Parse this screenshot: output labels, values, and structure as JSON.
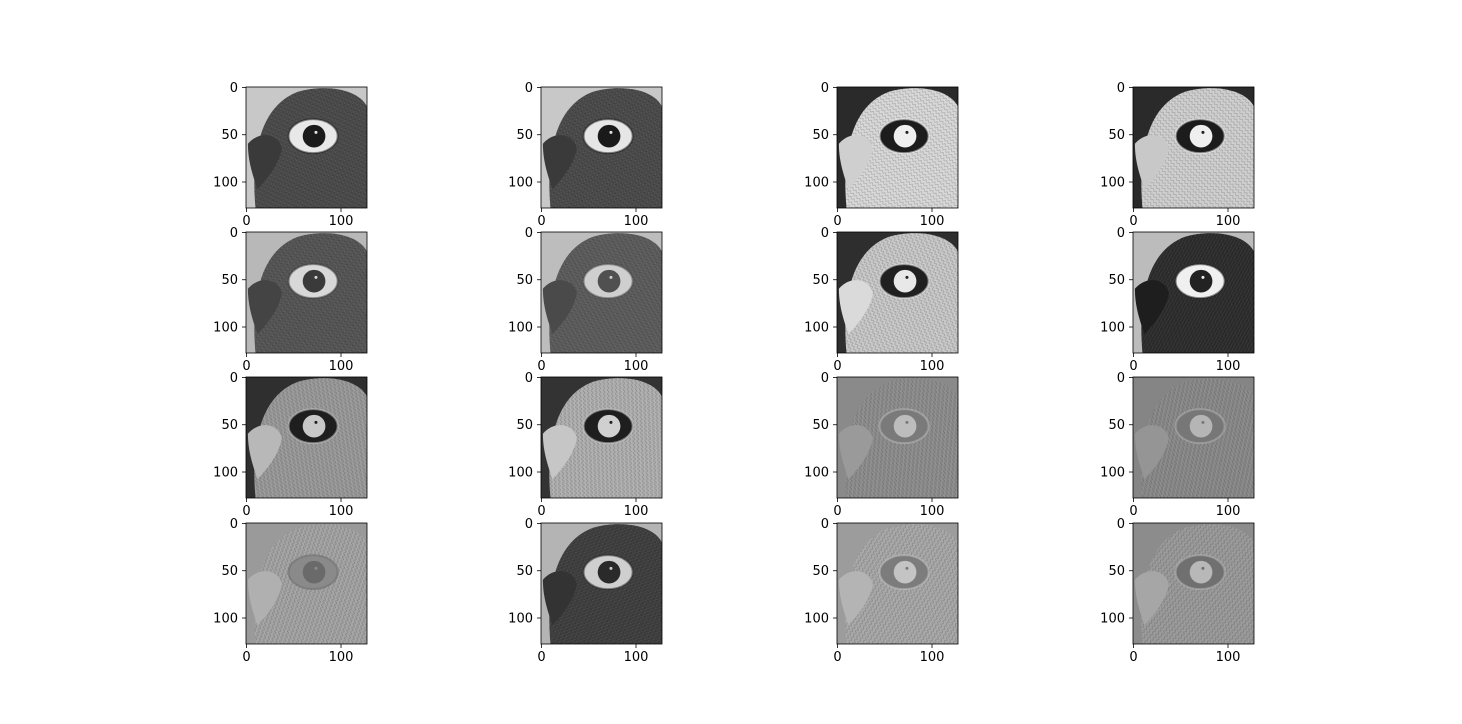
{
  "figure": {
    "rows": 4,
    "cols": 4,
    "image_size": 128,
    "x_ticks": [
      "0",
      "100"
    ],
    "y_ticks": [
      "0",
      "50",
      "100"
    ],
    "panels": [
      {
        "row": 0,
        "col": 0,
        "description": "grayscale parrot eye, original tones",
        "bg": "#c8c8c8",
        "feather": "#4a4a4a",
        "sclera": "#e8e8e8",
        "pupil": "#1a1a1a",
        "beak": "#3a3a3a"
      },
      {
        "row": 0,
        "col": 1,
        "description": "grayscale parrot eye, original tones",
        "bg": "#c8c8c8",
        "feather": "#4a4a4a",
        "sclera": "#e6e6e6",
        "pupil": "#1a1a1a",
        "beak": "#3a3a3a"
      },
      {
        "row": 0,
        "col": 2,
        "description": "grayscale parrot eye, inverted tones",
        "bg": "#2a2a2a",
        "feather": "#d8d8d8",
        "sclera": "#1c1c1c",
        "pupil": "#efefef",
        "beak": "#cfcfcf"
      },
      {
        "row": 0,
        "col": 3,
        "description": "grayscale parrot eye, inverted tones",
        "bg": "#2a2a2a",
        "feather": "#cfcfcf",
        "sclera": "#1c1c1c",
        "pupil": "#efefef",
        "beak": "#c8c8c8"
      },
      {
        "row": 1,
        "col": 0,
        "description": "grayscale parrot eye, medium tones",
        "bg": "#b8b8b8",
        "feather": "#555555",
        "sclera": "#d8d8d8",
        "pupil": "#3a3a3a",
        "beak": "#444444"
      },
      {
        "row": 1,
        "col": 1,
        "description": "grayscale parrot eye, smoothed tones",
        "bg": "#bdbdbd",
        "feather": "#5c5c5c",
        "sclera": "#cfcfcf",
        "pupil": "#505050",
        "beak": "#4a4a4a"
      },
      {
        "row": 1,
        "col": 2,
        "description": "grayscale parrot eye, inverted light",
        "bg": "#2e2e2e",
        "feather": "#c8c8c8",
        "sclera": "#202020",
        "pupil": "#e8e8e8",
        "beak": "#dadada"
      },
      {
        "row": 1,
        "col": 3,
        "description": "grayscale parrot eye, dark feathers",
        "bg": "#bcbcbc",
        "feather": "#2c2c2c",
        "sclera": "#f0f0f0",
        "pupil": "#222222",
        "beak": "#1e1e1e"
      },
      {
        "row": 2,
        "col": 0,
        "description": "grayscale parrot eye, inverted mid",
        "bg": "#2f2f2f",
        "feather": "#9a9a9a",
        "sclera": "#1e1e1e",
        "pupil": "#c8c8c8",
        "beak": "#b8b8b8"
      },
      {
        "row": 2,
        "col": 1,
        "description": "grayscale parrot eye, inverted bright",
        "bg": "#333333",
        "feather": "#b0b0b0",
        "sclera": "#1e1e1e",
        "pupil": "#d0d0d0",
        "beak": "#c6c6c6"
      },
      {
        "row": 2,
        "col": 2,
        "description": "edge-filtered parrot eye, flat gray",
        "bg": "#8a8a8a",
        "feather": "#8e8e8e",
        "sclera": "#7a7a7a",
        "pupil": "#bdbdbd",
        "beak": "#9a9a9a"
      },
      {
        "row": 2,
        "col": 3,
        "description": "edge-filtered parrot eye, flat gray",
        "bg": "#858585",
        "feather": "#8a8a8a",
        "sclera": "#777777",
        "pupil": "#b5b5b5",
        "beak": "#959595"
      },
      {
        "row": 3,
        "col": 0,
        "description": "edge-filtered parrot eye, embossed",
        "bg": "#9a9a9a",
        "feather": "#a4a4a4",
        "sclera": "#8a8a8a",
        "pupil": "#6a6a6a",
        "beak": "#b0b0b0"
      },
      {
        "row": 3,
        "col": 1,
        "description": "grayscale parrot eye, dark feathers",
        "bg": "#b4b4b4",
        "feather": "#3e3e3e",
        "sclera": "#cfcfcf",
        "pupil": "#2a2a2a",
        "beak": "#333333"
      },
      {
        "row": 3,
        "col": 2,
        "description": "edge-filtered parrot eye, light gray",
        "bg": "#9c9c9c",
        "feather": "#a8a8a8",
        "sclera": "#7c7c7c",
        "pupil": "#c4c4c4",
        "beak": "#b4b4b4"
      },
      {
        "row": 3,
        "col": 3,
        "description": "edge-filtered parrot eye, mid gray",
        "bg": "#8c8c8c",
        "feather": "#9a9a9a",
        "sclera": "#707070",
        "pupil": "#b8b8b8",
        "beak": "#a6a6a6"
      }
    ]
  }
}
